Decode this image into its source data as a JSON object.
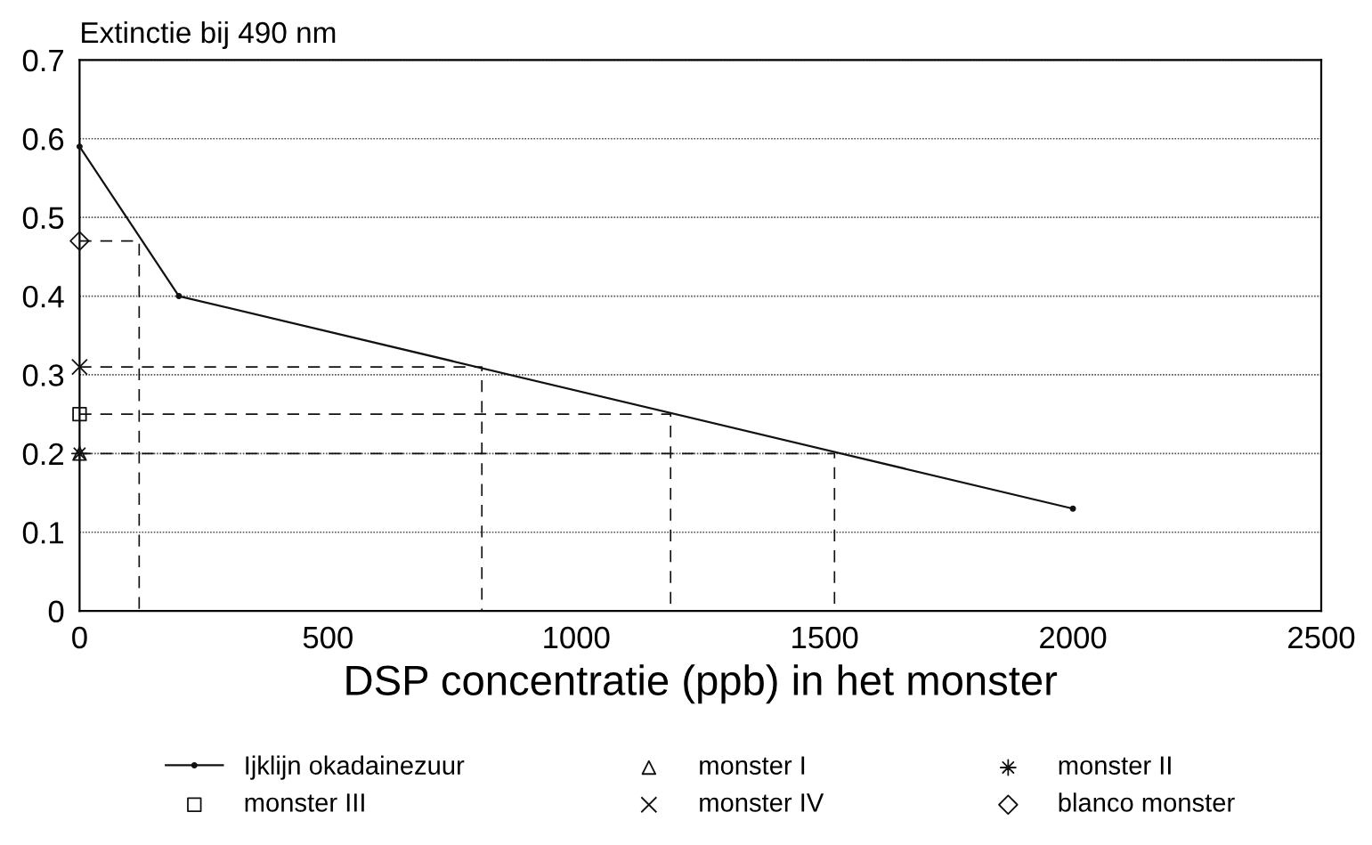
{
  "chart_data": {
    "type": "line",
    "ylabel": "Extinctie bij 490 nm",
    "xlabel": "DSP concentratie (ppb) in het monster",
    "xlim": [
      0,
      2500
    ],
    "xticks": [
      0,
      500,
      1000,
      1500,
      2000,
      2500
    ],
    "ylim": [
      0,
      0.7
    ],
    "yticks": [
      0,
      0.1,
      0.2,
      0.3,
      0.4,
      0.5,
      0.6,
      0.7
    ],
    "grid": "y",
    "legend": "bottom",
    "series": [
      {
        "name": "Ijklijn okadainezuur",
        "color": "#111111",
        "marker": "circle",
        "line_style": "solid",
        "x": [
          0,
          200,
          2000
        ],
        "values": [
          0.59,
          0.4,
          0.13
        ]
      },
      {
        "name": "monster I",
        "type": "scatter",
        "color": "#111111",
        "marker": "triangle",
        "x": [
          0
        ],
        "values": [
          0.2
        ]
      },
      {
        "name": "monster II",
        "type": "scatter",
        "color": "#111111",
        "marker": "star",
        "x": [
          0
        ],
        "values": [
          0.2
        ]
      },
      {
        "name": "monster III",
        "type": "scatter",
        "color": "#111111",
        "marker": "square",
        "x": [
          0
        ],
        "values": [
          0.25
        ]
      },
      {
        "name": "monster IV",
        "type": "scatter",
        "color": "#111111",
        "marker": "cross",
        "x": [
          0
        ],
        "values": [
          0.31
        ]
      },
      {
        "name": "blanco monster",
        "type": "scatter",
        "color": "#111111",
        "marker": "diamond",
        "x": [
          0
        ],
        "values": [
          0.47
        ]
      },
      {
        "type": "line",
        "color": "#111111",
        "marker": "none",
        "line_style": "dashed",
        "x": [
          0,
          120,
          120
        ],
        "values": [
          0.47,
          0.47,
          0
        ]
      },
      {
        "type": "line",
        "color": "#111111",
        "marker": "none",
        "line_style": "dashed",
        "x": [
          0,
          810,
          810
        ],
        "values": [
          0.31,
          0.31,
          0
        ]
      },
      {
        "type": "line",
        "color": "#111111",
        "marker": "none",
        "line_style": "dashed",
        "x": [
          0,
          1190,
          1190
        ],
        "values": [
          0.25,
          0.25,
          0
        ]
      },
      {
        "type": "line",
        "color": "#111111",
        "marker": "none",
        "line_style": "dashed",
        "x": [
          0,
          1520,
          1520
        ],
        "values": [
          0.2,
          0.2,
          0
        ]
      }
    ]
  }
}
